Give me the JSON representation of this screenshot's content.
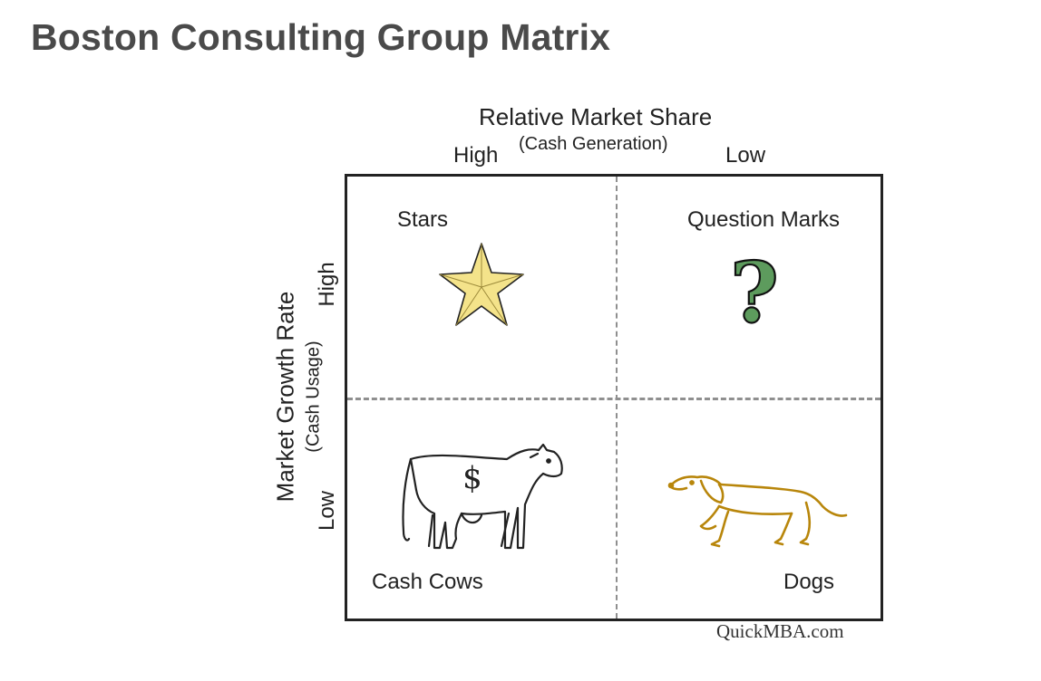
{
  "title": "Boston Consulting Group Matrix",
  "x_axis": {
    "title": "Relative Market Share",
    "subtitle": "(Cash Generation)",
    "high_label": "High",
    "low_label": "Low"
  },
  "y_axis": {
    "title": "Market Growth Rate",
    "subtitle": "(Cash Usage)",
    "high_label": "High",
    "low_label": "Low"
  },
  "quadrants": [
    {
      "label": "Stars",
      "icon": "star-icon",
      "color": "#f4e38a"
    },
    {
      "label": "Question Marks",
      "icon": "question-mark-icon",
      "color": "#5d9b5d"
    },
    {
      "label": "Cash Cows",
      "icon": "cow-icon",
      "color": "#222222"
    },
    {
      "label": "Dogs",
      "icon": "dog-icon",
      "color": "#b8860b"
    }
  ],
  "cow_symbol": "$",
  "question_symbol": "?",
  "credit": "QuickMBA.com",
  "colors": {
    "title": "#4a4a4a",
    "divider": "#8f8f8f",
    "border": "#222222"
  }
}
